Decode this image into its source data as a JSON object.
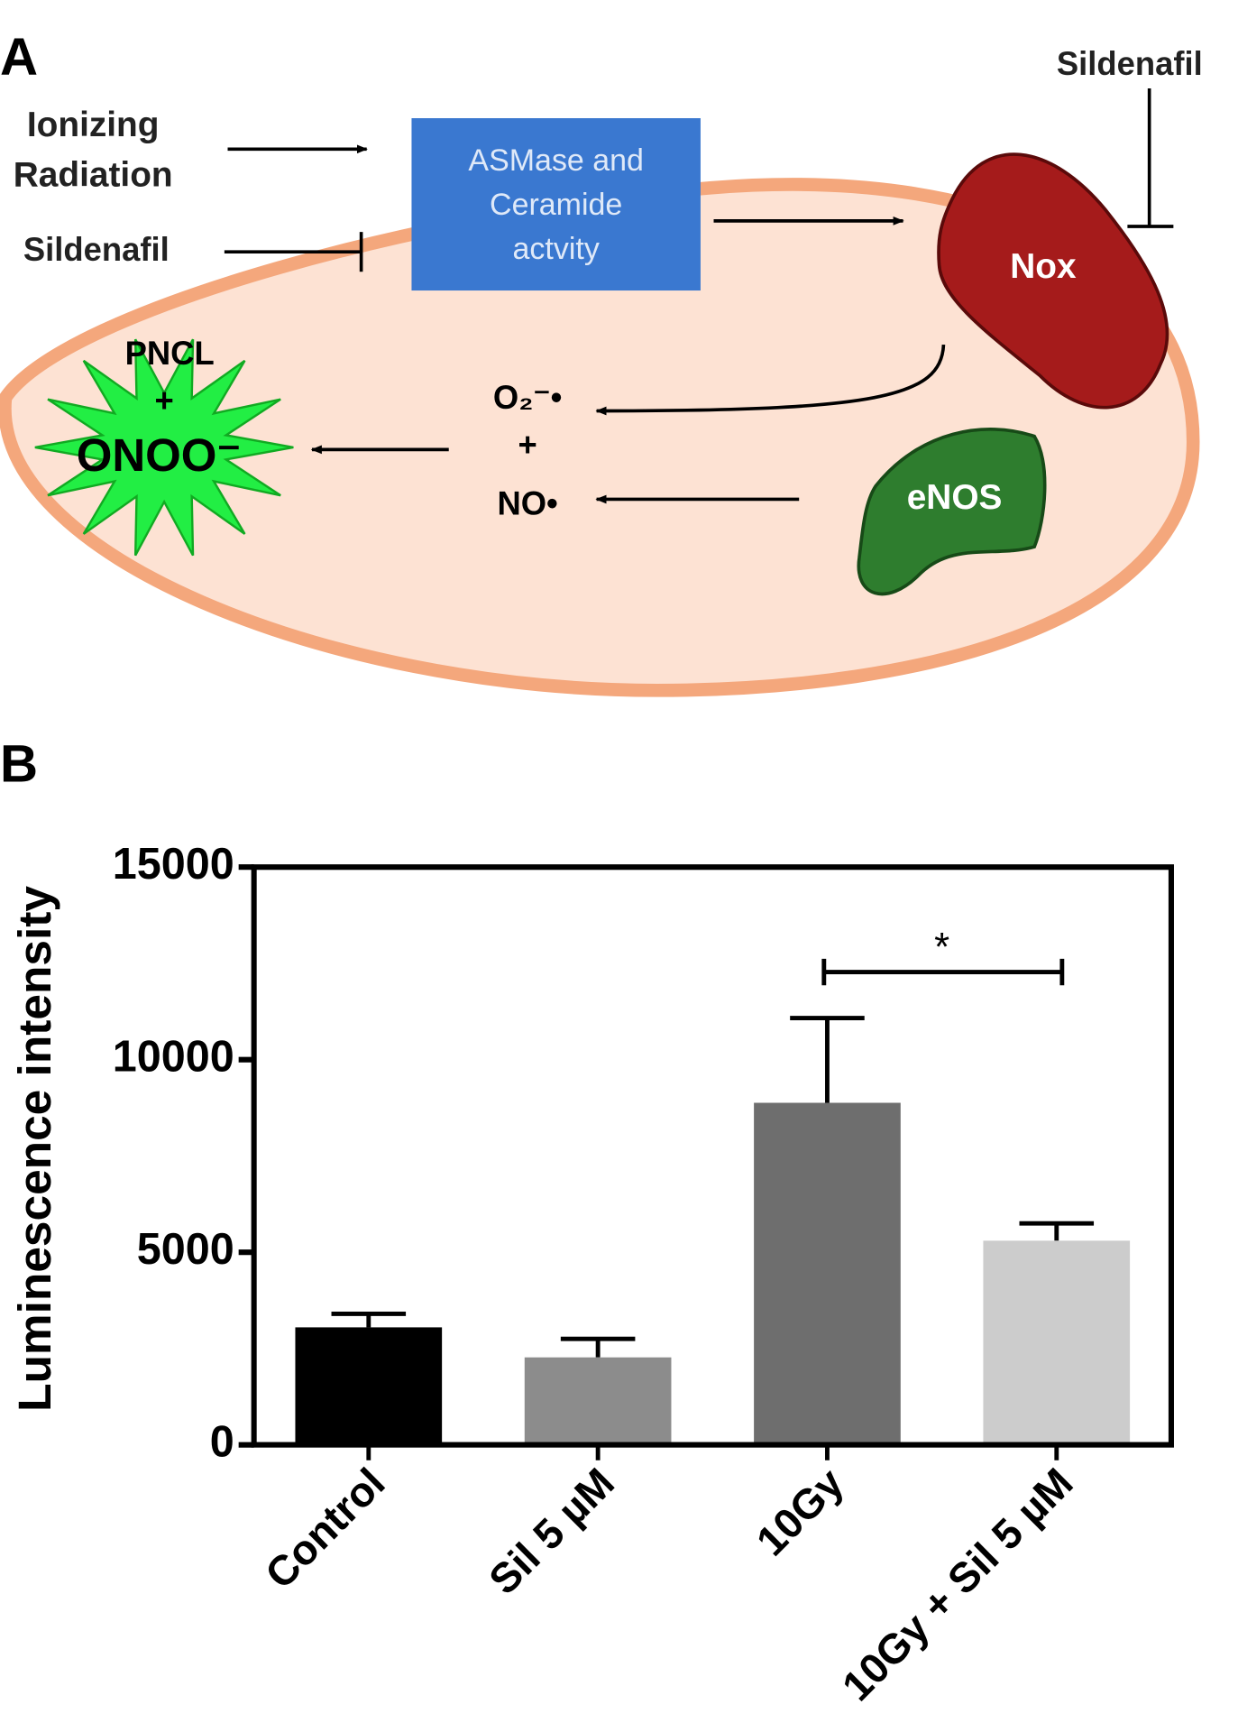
{
  "diagram": {
    "panel_label": "A",
    "inputs": {
      "radiation_line1": "Ionizing",
      "radiation_line2": "Radiation",
      "sildenafil_left": "Sildenafil",
      "sildenafil_top": "Sildenafil"
    },
    "box": {
      "line1": "ASMase and",
      "line2": "Ceramide",
      "line3": "actvity"
    },
    "nox": "Nox",
    "enos": "eNOS",
    "products": {
      "superoxide": "O₂⁻•",
      "plus": "+",
      "nitric_oxide": "NO•"
    },
    "probe": {
      "pncl": "PNCL",
      "plus": "+",
      "peroxynitrite": "ONOO⁻"
    }
  },
  "chart_data": {
    "type": "bar",
    "panel_label": "B",
    "y_label": "Luminescence intensity",
    "categories": [
      "Control",
      "Sil 5 µM",
      "10Gy",
      "10Gy + Sil 5 µM"
    ],
    "values": [
      3050,
      2270,
      8880,
      5300
    ],
    "errors": [
      350,
      480,
      2200,
      450
    ],
    "colors": [
      "#000000",
      "#8c8c8c",
      "#6e6e6e",
      "#cccccc"
    ],
    "ylim": [
      0,
      15000
    ],
    "yticks": [
      0,
      5000,
      10000,
      15000
    ],
    "annotation": "*"
  }
}
